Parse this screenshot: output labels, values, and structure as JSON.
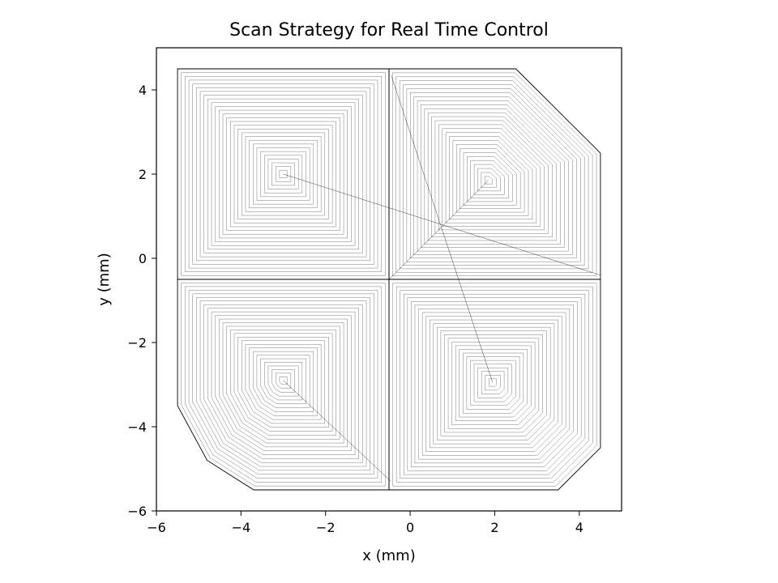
{
  "chart_data": {
    "type": "line",
    "title": "Scan Strategy for Real Time Control",
    "xlabel": "x (mm)",
    "ylabel": "y (mm)",
    "xlim": [
      -6,
      5
    ],
    "ylim": [
      -6,
      5
    ],
    "xticks": [
      -6,
      -4,
      -2,
      0,
      2,
      4
    ],
    "yticks": [
      -6,
      -4,
      -2,
      0,
      2,
      4
    ],
    "xtick_labels": [
      "−6",
      "−4",
      "−2",
      "0",
      "2",
      "4"
    ],
    "ytick_labels": [
      "−6",
      "−4",
      "−2",
      "0",
      "2",
      "4"
    ],
    "line_color": "#000000",
    "grid": false,
    "legend": "none",
    "series": [
      {
        "center": [
          -3.0,
          2.0
        ],
        "boundary": [
          [
            -5.5,
            4.5
          ],
          [
            -0.5,
            4.5
          ],
          [
            -0.5,
            -0.5
          ],
          [
            -5.5,
            -0.5
          ]
        ],
        "rings": 28
      },
      {
        "center": [
          1.85,
          1.85
        ],
        "boundary": [
          [
            -0.5,
            4.5
          ],
          [
            2.5,
            4.5
          ],
          [
            4.5,
            2.5
          ],
          [
            4.5,
            -0.5
          ],
          [
            -0.5,
            -0.5
          ]
        ],
        "rings": 28
      },
      {
        "center": [
          -3.0,
          -2.9
        ],
        "boundary": [
          [
            -5.5,
            -0.5
          ],
          [
            -0.5,
            -0.5
          ],
          [
            -0.5,
            -5.5
          ],
          [
            -3.7,
            -5.5
          ],
          [
            -4.8,
            -4.8
          ],
          [
            -5.5,
            -3.5
          ]
        ],
        "rings": 28
      },
      {
        "center": [
          1.95,
          -2.95
        ],
        "boundary": [
          [
            -0.5,
            -0.5
          ],
          [
            4.5,
            -0.5
          ],
          [
            4.5,
            -4.5
          ],
          [
            3.5,
            -5.5
          ],
          [
            -0.5,
            -5.5
          ]
        ],
        "rings": 28
      }
    ],
    "jumps": [
      [
        [
          -3.0,
          2.0
        ],
        [
          4.5,
          -0.4
        ]
      ],
      [
        [
          1.85,
          1.85
        ],
        [
          -0.5,
          -0.5
        ]
      ],
      [
        [
          -0.45,
          4.35
        ],
        [
          1.95,
          -2.95
        ]
      ],
      [
        [
          -3.0,
          -2.9
        ],
        [
          -0.45,
          -5.3
        ]
      ]
    ]
  }
}
